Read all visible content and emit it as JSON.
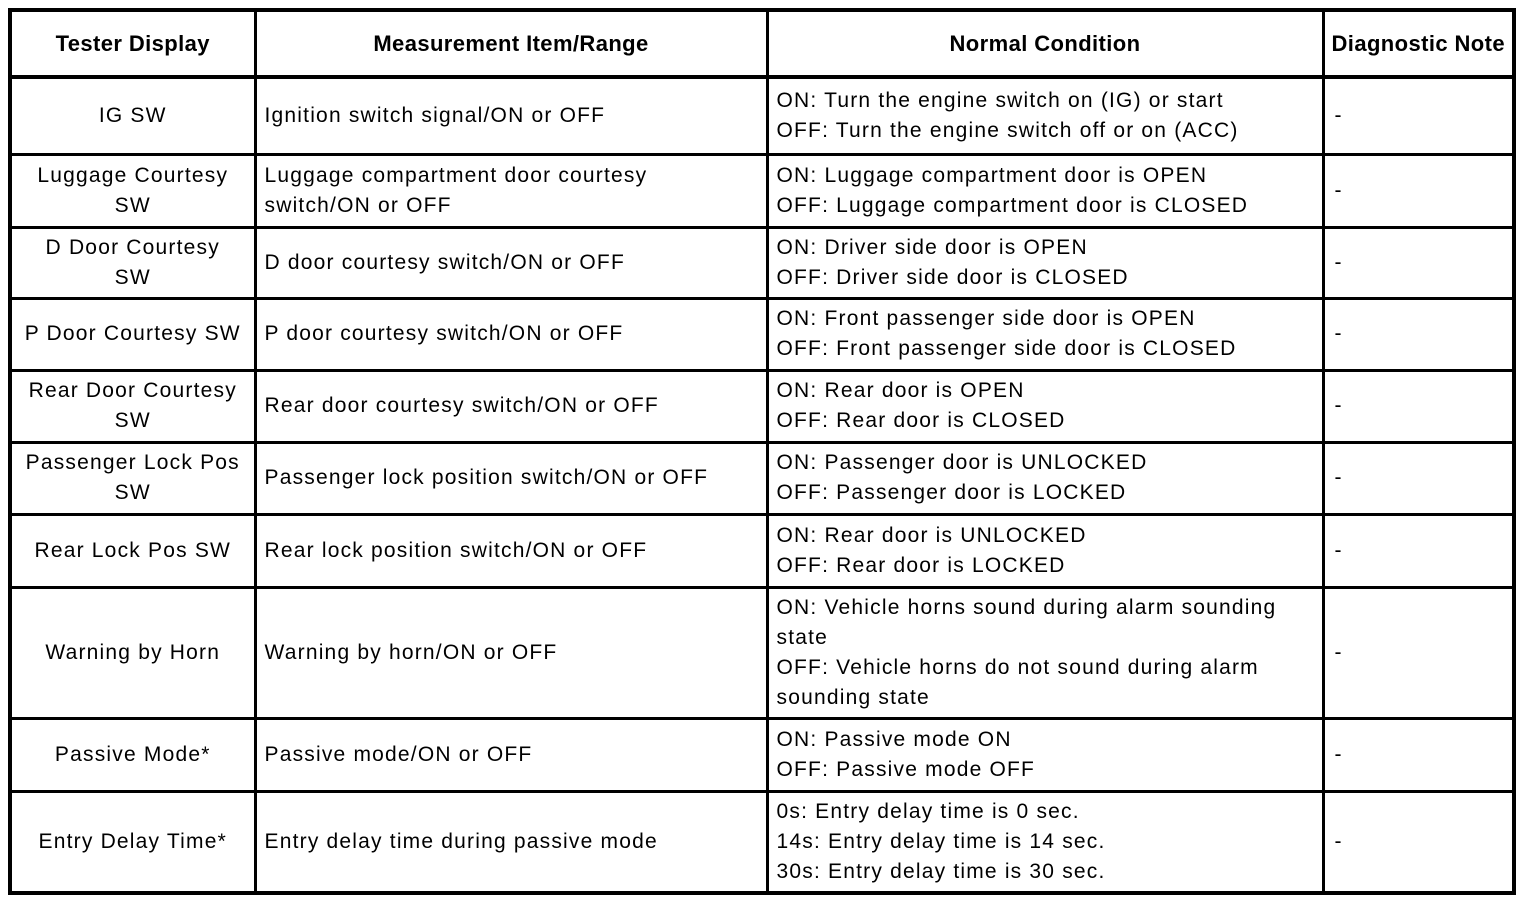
{
  "page": {
    "background_color": "#ffffff",
    "border_color": "#000000",
    "text_color": "#000000"
  },
  "table": {
    "columns": [
      "Tester Display",
      "Measurement Item/Range",
      "Normal Condition",
      "Diagnostic Note"
    ],
    "rows": [
      {
        "tester_display": "IG SW",
        "measurement_item_range": "Ignition switch signal/ON or OFF",
        "normal_condition": [
          "ON: Turn the engine switch on (IG) or start",
          "OFF: Turn the engine switch off or on (ACC)"
        ],
        "diagnostic_note": "-"
      },
      {
        "tester_display": "Luggage Courtesy SW",
        "measurement_item_range": "Luggage compartment door courtesy switch/ON or OFF",
        "normal_condition": [
          "ON: Luggage compartment door is OPEN",
          "OFF: Luggage compartment door is CLOSED"
        ],
        "diagnostic_note": "-"
      },
      {
        "tester_display": "D Door Courtesy SW",
        "measurement_item_range": "D door courtesy switch/ON or OFF",
        "normal_condition": [
          "ON: Driver side door is OPEN",
          "OFF: Driver side door is CLOSED"
        ],
        "diagnostic_note": "-"
      },
      {
        "tester_display": "P Door Courtesy SW",
        "measurement_item_range": "P door courtesy switch/ON or OFF",
        "normal_condition": [
          "ON: Front passenger side door is OPEN",
          "OFF: Front passenger side door is CLOSED"
        ],
        "diagnostic_note": "-"
      },
      {
        "tester_display": "Rear Door Courtesy SW",
        "measurement_item_range": "Rear door courtesy switch/ON or OFF",
        "normal_condition": [
          "ON: Rear door is OPEN",
          "OFF: Rear door is CLOSED"
        ],
        "diagnostic_note": "-"
      },
      {
        "tester_display": "Passenger Lock Pos SW",
        "measurement_item_range": "Passenger lock position switch/ON or OFF",
        "normal_condition": [
          "ON: Passenger door is UNLOCKED",
          "OFF: Passenger door is LOCKED"
        ],
        "diagnostic_note": "-"
      },
      {
        "tester_display": "Rear Lock Pos SW",
        "measurement_item_range": "Rear lock position switch/ON or OFF",
        "normal_condition": [
          "ON: Rear door is UNLOCKED",
          "OFF: Rear door is LOCKED"
        ],
        "diagnostic_note": "-"
      },
      {
        "tester_display": "Warning by Horn",
        "measurement_item_range": "Warning by horn/ON or OFF",
        "normal_condition": [
          "ON: Vehicle horns sound during alarm sounding state",
          "OFF: Vehicle horns do not sound during alarm sounding state"
        ],
        "diagnostic_note": "-"
      },
      {
        "tester_display": "Passive Mode*",
        "measurement_item_range": "Passive mode/ON or OFF",
        "normal_condition": [
          "ON: Passive mode ON",
          "OFF: Passive mode OFF"
        ],
        "diagnostic_note": "-"
      },
      {
        "tester_display": "Entry Delay Time*",
        "measurement_item_range": "Entry delay time during passive mode",
        "normal_condition": [
          "0s: Entry delay time is 0 sec.",
          "14s: Entry delay time is 14 sec.",
          "30s: Entry delay time is 30 sec."
        ],
        "diagnostic_note": "-"
      }
    ]
  }
}
